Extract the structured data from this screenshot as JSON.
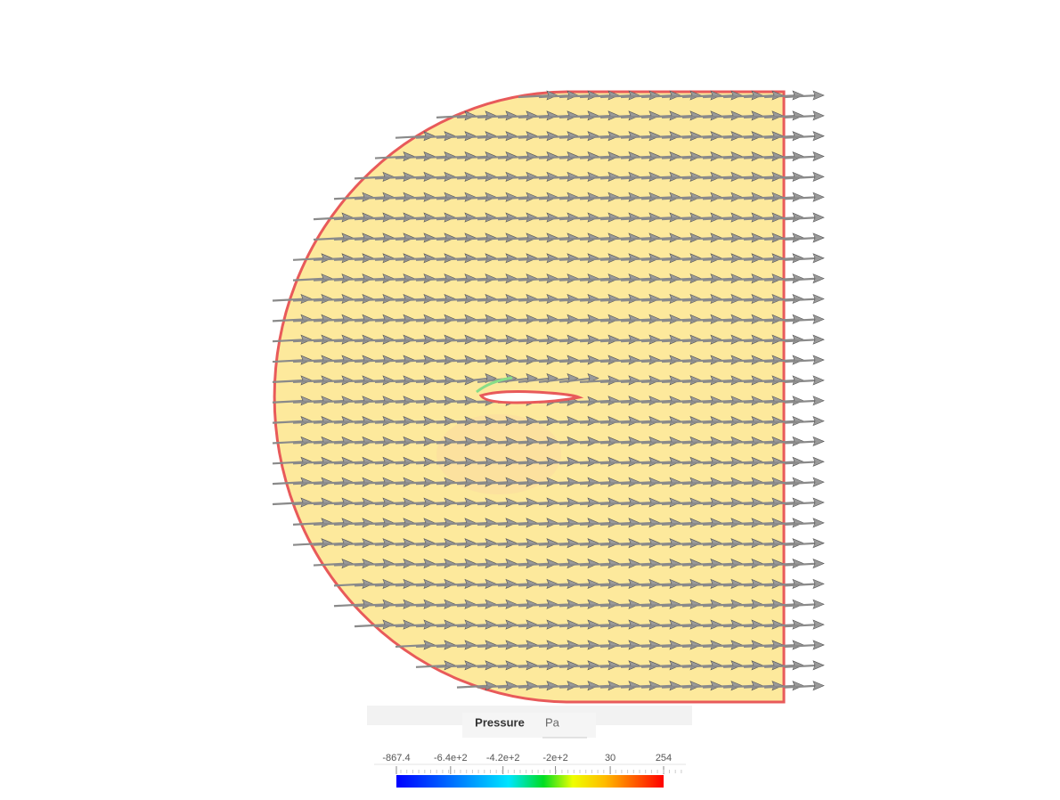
{
  "legend": {
    "title": "Pressure",
    "unit": "Pa",
    "range": [
      -867.4,
      254
    ],
    "ticks": [
      -867.4,
      {
        "value": -640,
        "label": "-6.4e+2"
      },
      {
        "value": -420,
        "label": "-4.2e+2"
      },
      {
        "value": -200,
        "label": "-2e+2"
      },
      30,
      254
    ]
  }
}
